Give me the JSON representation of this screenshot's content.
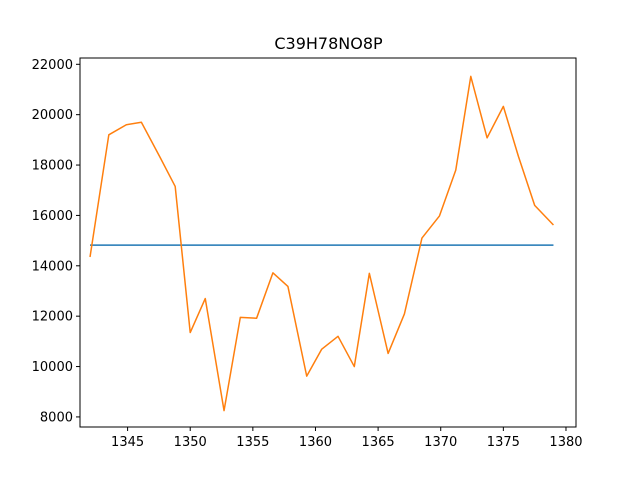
{
  "chart_data": {
    "type": "line",
    "title": "C39H78NO8P",
    "xlabel": "",
    "ylabel": "",
    "xlim": [
      1341.2,
      1380.8
    ],
    "ylim": [
      7600,
      22250
    ],
    "grid": false,
    "x_ticks": [
      1345,
      1350,
      1355,
      1360,
      1365,
      1370,
      1375,
      1380
    ],
    "y_ticks": [
      8000,
      10000,
      12000,
      14000,
      16000,
      18000,
      20000,
      22000
    ],
    "x_tick_labels": [
      "1345",
      "1350",
      "1355",
      "1360",
      "1365",
      "1370",
      "1375",
      "1380"
    ],
    "y_tick_labels": [
      "8000",
      "10000",
      "12000",
      "14000",
      "16000",
      "18000",
      "20000",
      "22000"
    ],
    "colors": {
      "series_0": "#1f77b4",
      "series_1": "#ff7f0e",
      "axes": "#000000"
    },
    "series": [
      {
        "x": [
          1342,
          1379
        ],
        "values": [
          14820,
          14820
        ]
      },
      {
        "x": [
          1342.0,
          1343.5,
          1344.9,
          1346.1,
          1347.6,
          1348.8,
          1350.0,
          1351.2,
          1352.7,
          1354.0,
          1355.3,
          1356.6,
          1357.8,
          1359.3,
          1360.5,
          1361.8,
          1363.1,
          1364.3,
          1365.8,
          1367.1,
          1368.5,
          1369.9,
          1371.2,
          1372.4,
          1373.7,
          1375.0,
          1376.2,
          1377.5,
          1379.0
        ],
        "values": [
          14350,
          19200,
          19600,
          19700,
          18300,
          17150,
          11350,
          12700,
          8250,
          11950,
          11920,
          13720,
          13180,
          9620,
          10690,
          11200,
          10000,
          13700,
          10520,
          12090,
          15100,
          15980,
          17800,
          21520,
          19080,
          20330,
          18350,
          16400,
          15620
        ]
      }
    ]
  }
}
